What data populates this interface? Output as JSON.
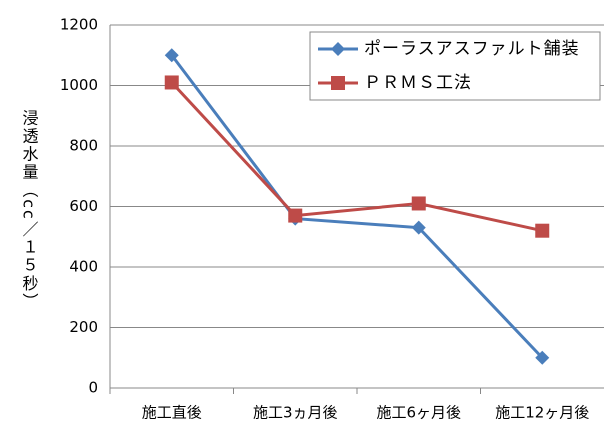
{
  "chart_data": {
    "type": "line",
    "y_label": "浸透水量（cc／１５秒）",
    "categories": [
      "施工直後",
      "施工3ヵ月後",
      "施工6ヶ月後",
      "施工12ヶ月後"
    ],
    "series": [
      {
        "name": "ポーラスアスファルト舗装",
        "color": "#4a7ebb",
        "marker": "diamond",
        "values": [
          1100,
          560,
          530,
          100
        ]
      },
      {
        "name": "ＰＲＭＳ工法",
        "color": "#be4b48",
        "marker": "square",
        "values": [
          1010,
          570,
          610,
          520
        ]
      }
    ],
    "ylim": [
      0,
      1200
    ],
    "yticks": [
      0,
      200,
      400,
      600,
      800,
      1000,
      1200
    ],
    "grid": true,
    "legend": "upper right"
  }
}
